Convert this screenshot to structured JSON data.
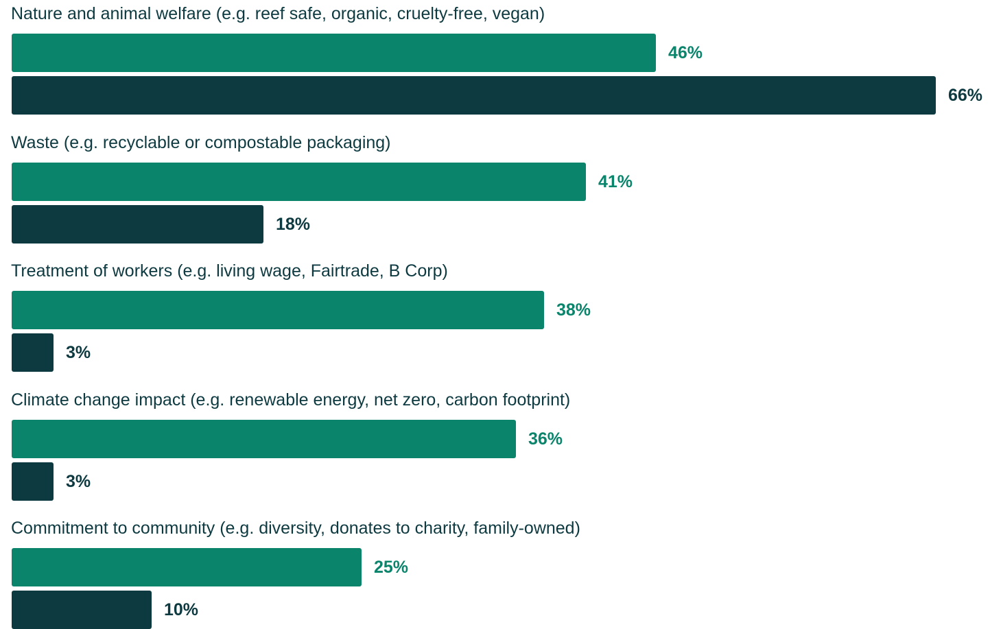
{
  "chart_data": {
    "type": "bar",
    "orientation": "horizontal",
    "categories": [
      "Nature and animal welfare (e.g. reef safe, organic, cruelty-free, vegan)",
      "Waste (e.g. recyclable or compostable packaging)",
      "Treatment of workers (e.g. living wage, Fairtrade, B Corp)",
      "Climate change impact (e.g. renewable energy, net zero, carbon footprint)",
      "Commitment to community (e.g. diversity, donates to charity, family-owned)"
    ],
    "series": [
      {
        "values": [
          46,
          41,
          38,
          36,
          25
        ],
        "color": "#0b846c"
      },
      {
        "values": [
          66,
          18,
          3,
          3,
          10
        ],
        "color": "#0d3a40"
      }
    ],
    "value_suffix": "%",
    "xlim": [
      0,
      66
    ],
    "grid": false,
    "legend": "none"
  }
}
